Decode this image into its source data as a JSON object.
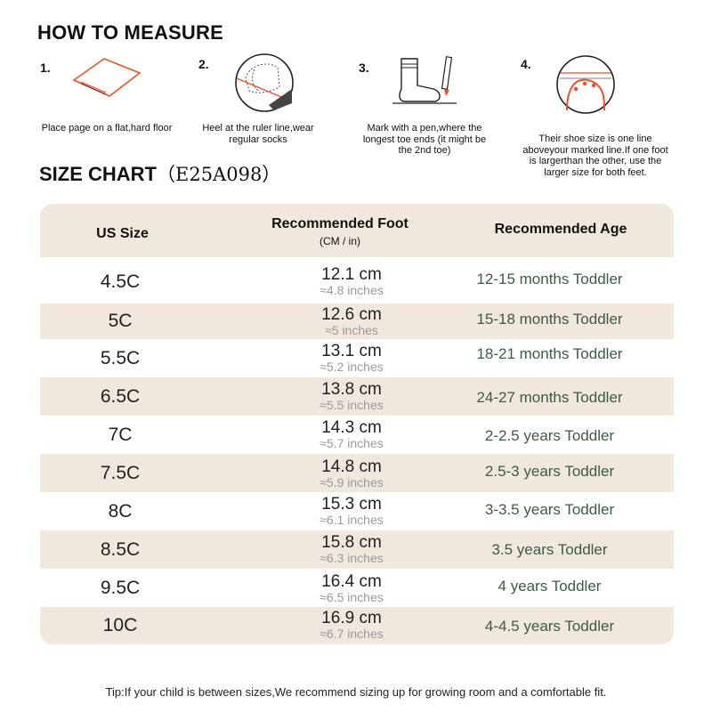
{
  "how_to_title": "HOW TO MEASURE",
  "steps": [
    {
      "num": "1.",
      "caption": "Place page on a flat,hard floor",
      "icon": "paper-on-floor-icon"
    },
    {
      "num": "2.",
      "caption": "Heel at the ruler line,wear regular socks",
      "icon": "heel-ruler-icon"
    },
    {
      "num": "3.",
      "caption": "Mark with a pen,where the longest toe ends (it might be the 2nd toe)",
      "icon": "sock-pen-icon"
    },
    {
      "num": "4.",
      "caption": "Their shoe size is one line aboveyour marked line.If one foot is largerthan the other, use the larger size for both feet.",
      "icon": "toe-line-icon"
    }
  ],
  "size_chart": {
    "title": "SIZE CHART",
    "code": "（E25A098）"
  },
  "table": {
    "headers": {
      "size": "US Size",
      "foot": "Recommended Foot",
      "foot_unit": "(CM / in)",
      "age": "Recommended Age"
    },
    "rows": [
      {
        "size": "4.5C",
        "cm": "12.1 cm",
        "inches": "≈4.8 inches",
        "age": "12-15 months Toddler"
      },
      {
        "size": "5C",
        "cm": "12.6 cm",
        "inches": "≈5 inches",
        "age": "15-18 months Toddler"
      },
      {
        "size": "5.5C",
        "cm": "13.1 cm",
        "inches": "≈5.2 inches",
        "age": "18-21 months Toddler"
      },
      {
        "size": "6.5C",
        "cm": "13.8 cm",
        "inches": "≈5.5 inches",
        "age": "24-27 months Toddler"
      },
      {
        "size": "7C",
        "cm": "14.3 cm",
        "inches": "≈5.7 inches",
        "age": "2-2.5 years Toddler"
      },
      {
        "size": "7.5C",
        "cm": "14.8 cm",
        "inches": "≈5.9 inches",
        "age": "2.5-3 years Toddler"
      },
      {
        "size": "8C",
        "cm": "15.3 cm",
        "inches": "≈6.1 inches",
        "age": "3-3.5 years Toddler"
      },
      {
        "size": "8.5C",
        "cm": "15.8 cm",
        "inches": "≈6.3 inches",
        "age": "3.5 years Toddler"
      },
      {
        "size": "9.5C",
        "cm": "16.4 cm",
        "inches": "≈6.5 inches",
        "age": "4 years Toddler"
      },
      {
        "size": "10C",
        "cm": "16.9 cm",
        "inches": "≈6.7 inches",
        "age": "4-4.5 years Toddler"
      }
    ]
  },
  "tip": "Tip:If your child is between sizes,We recommend sizing up for growing room and a comfortable fit.",
  "colors": {
    "accent": "#e8512a",
    "table_bg": "#f0e8dc",
    "age_text": "#3f5a45"
  }
}
